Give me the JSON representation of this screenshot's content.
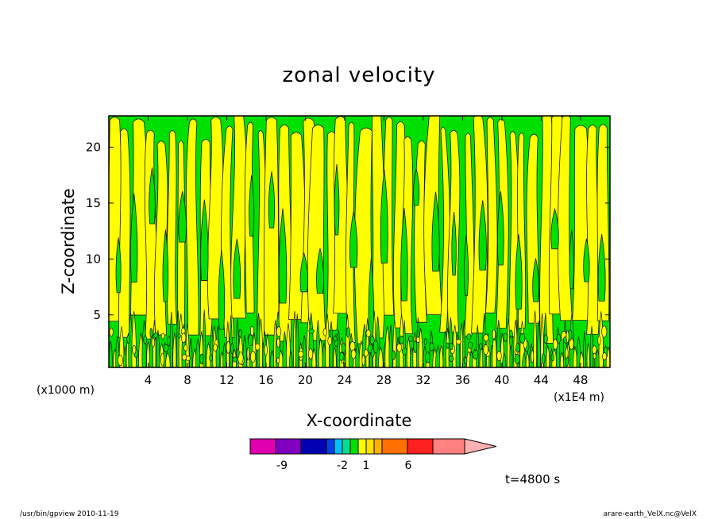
{
  "chart_data": {
    "type": "heatmap",
    "title": "zonal velocity",
    "xlabel": "X-coordinate",
    "ylabel": "Z-coordinate",
    "x_unit": "(x1E4 m)",
    "y_unit": "(x1000 m)",
    "xlim": [
      0,
      51
    ],
    "ylim": [
      0.3,
      22.8
    ],
    "x_ticks": [
      4,
      8,
      12,
      16,
      20,
      24,
      28,
      32,
      36,
      40,
      44,
      48
    ],
    "y_ticks": [
      5,
      10,
      15,
      20
    ],
    "fill_colors": {
      "negative_small": "#00e000",
      "positive_small": "#ffff00"
    },
    "contour_line_color": "#1a1a1a",
    "colorbar": {
      "tick_labels": [
        "-9",
        "-2",
        "1",
        "6"
      ],
      "tick_values": [
        -9,
        -2,
        1,
        6
      ],
      "segments": [
        {
          "color": "#e000b0"
        },
        {
          "color": "#8000c0"
        },
        {
          "color": "#0000b0"
        },
        {
          "color": "#0040e0"
        },
        {
          "color": "#00c0ff"
        },
        {
          "color": "#00e090"
        },
        {
          "color": "#00e000"
        },
        {
          "color": "#ffff00"
        },
        {
          "color": "#ffe000"
        },
        {
          "color": "#ffb000"
        },
        {
          "color": "#ff7000"
        },
        {
          "color": "#ff2020"
        },
        {
          "color": "#ff8080"
        },
        {
          "color": "#ffb0b0"
        }
      ]
    },
    "time_label": "t=4800 s"
  },
  "footer": {
    "left": "/usr/bin/gpview   2010-11-19",
    "right": "arare-earth_VelX.nc@VelX"
  }
}
